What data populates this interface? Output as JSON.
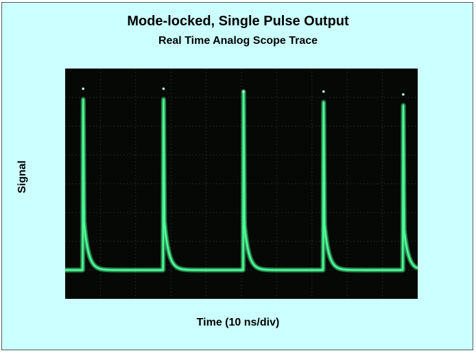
{
  "title": "Mode-locked, Single Pulse Output",
  "subtitle": "Real Time Analog Scope Trace",
  "xlabel": "Time (10 ns/div)",
  "ylabel": "Signal",
  "colors": {
    "panel_background": "#ccffff",
    "scope_screen": "#050805",
    "trace": "#4dff99"
  },
  "chart_data": {
    "type": "line",
    "title": "Mode-locked, Single Pulse Output",
    "subtitle": "Real Time Analog Scope Trace",
    "xlabel": "Time (10 ns/div)",
    "ylabel": "Signal",
    "x_units": "ns",
    "x_range_divisions": 10,
    "ns_per_division": 10,
    "xlim": [
      0,
      100
    ],
    "y_range_divisions": 8,
    "ylim": [
      0,
      8
    ],
    "grid": true,
    "baseline_divisions": 1.0,
    "pulse_period_ns": 22.7,
    "pulses": [
      {
        "t": 5.1,
        "peak": 7.3,
        "shoulder": 2.7
      },
      {
        "t": 27.9,
        "peak": 7.3,
        "shoulder": 2.7
      },
      {
        "t": 50.6,
        "peak": 7.2,
        "shoulder": 2.6
      },
      {
        "t": 73.3,
        "peak": 7.2,
        "shoulder": 2.6
      },
      {
        "t": 95.9,
        "peak": 7.1,
        "shoulder": 2.4
      }
    ]
  }
}
